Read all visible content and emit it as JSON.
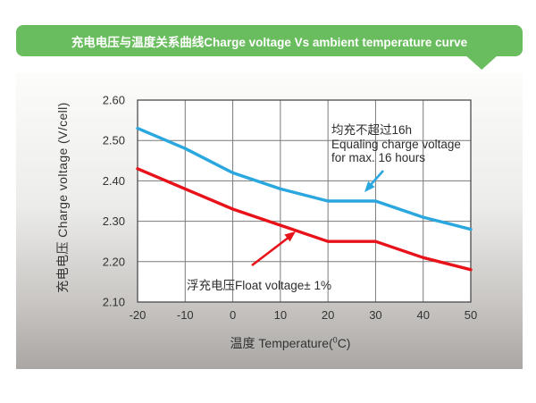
{
  "banner": {
    "title": "充电电压与温度关系曲线Charge voltage Vs ambient temperature curve",
    "bg_color": "#6abd5e",
    "text_color": "#ffffff"
  },
  "chart_data": {
    "type": "line",
    "title": "充电电压与温度关系曲线Charge voltage Vs ambient temperature curve",
    "xlabel_prefix": "温度 Temperature(",
    "xlabel_degree": "0",
    "xlabel_suffix": "C)",
    "ylabel": "充电电压 Charge voltage (V/cell)",
    "xlim": [
      -20,
      50
    ],
    "ylim": [
      2.1,
      2.6
    ],
    "x_ticks": [
      -20,
      -10,
      0,
      10,
      20,
      30,
      40,
      50
    ],
    "y_ticks": [
      2.6,
      2.5,
      2.4,
      2.3,
      2.2,
      2.1
    ],
    "grid": true,
    "grid_color": "#7a7a7a",
    "border_color": "#4c4c4c",
    "plot_bg": "#ffffff",
    "legend_position": "annotations-on-plot",
    "series": [
      {
        "name": "equalize-charge-voltage",
        "color": "#2aa7df",
        "x": [
          -20,
          -10,
          0,
          10,
          20,
          30,
          40,
          50
        ],
        "y": [
          2.53,
          2.48,
          2.42,
          2.38,
          2.35,
          2.35,
          2.31,
          2.28
        ]
      },
      {
        "name": "float-charge-voltage",
        "color": "#e8121a",
        "x": [
          -20,
          -10,
          0,
          10,
          20,
          30,
          40,
          50
        ],
        "y": [
          2.43,
          2.38,
          2.33,
          2.29,
          2.25,
          2.25,
          2.21,
          2.18
        ]
      }
    ],
    "annotations": {
      "equalize": {
        "lines": [
          "均充不超过16h",
          "Equaling charge voltage",
          "for max. 16 hours"
        ]
      },
      "float": {
        "text": "浮充电压Float voltage± 1%"
      }
    }
  }
}
